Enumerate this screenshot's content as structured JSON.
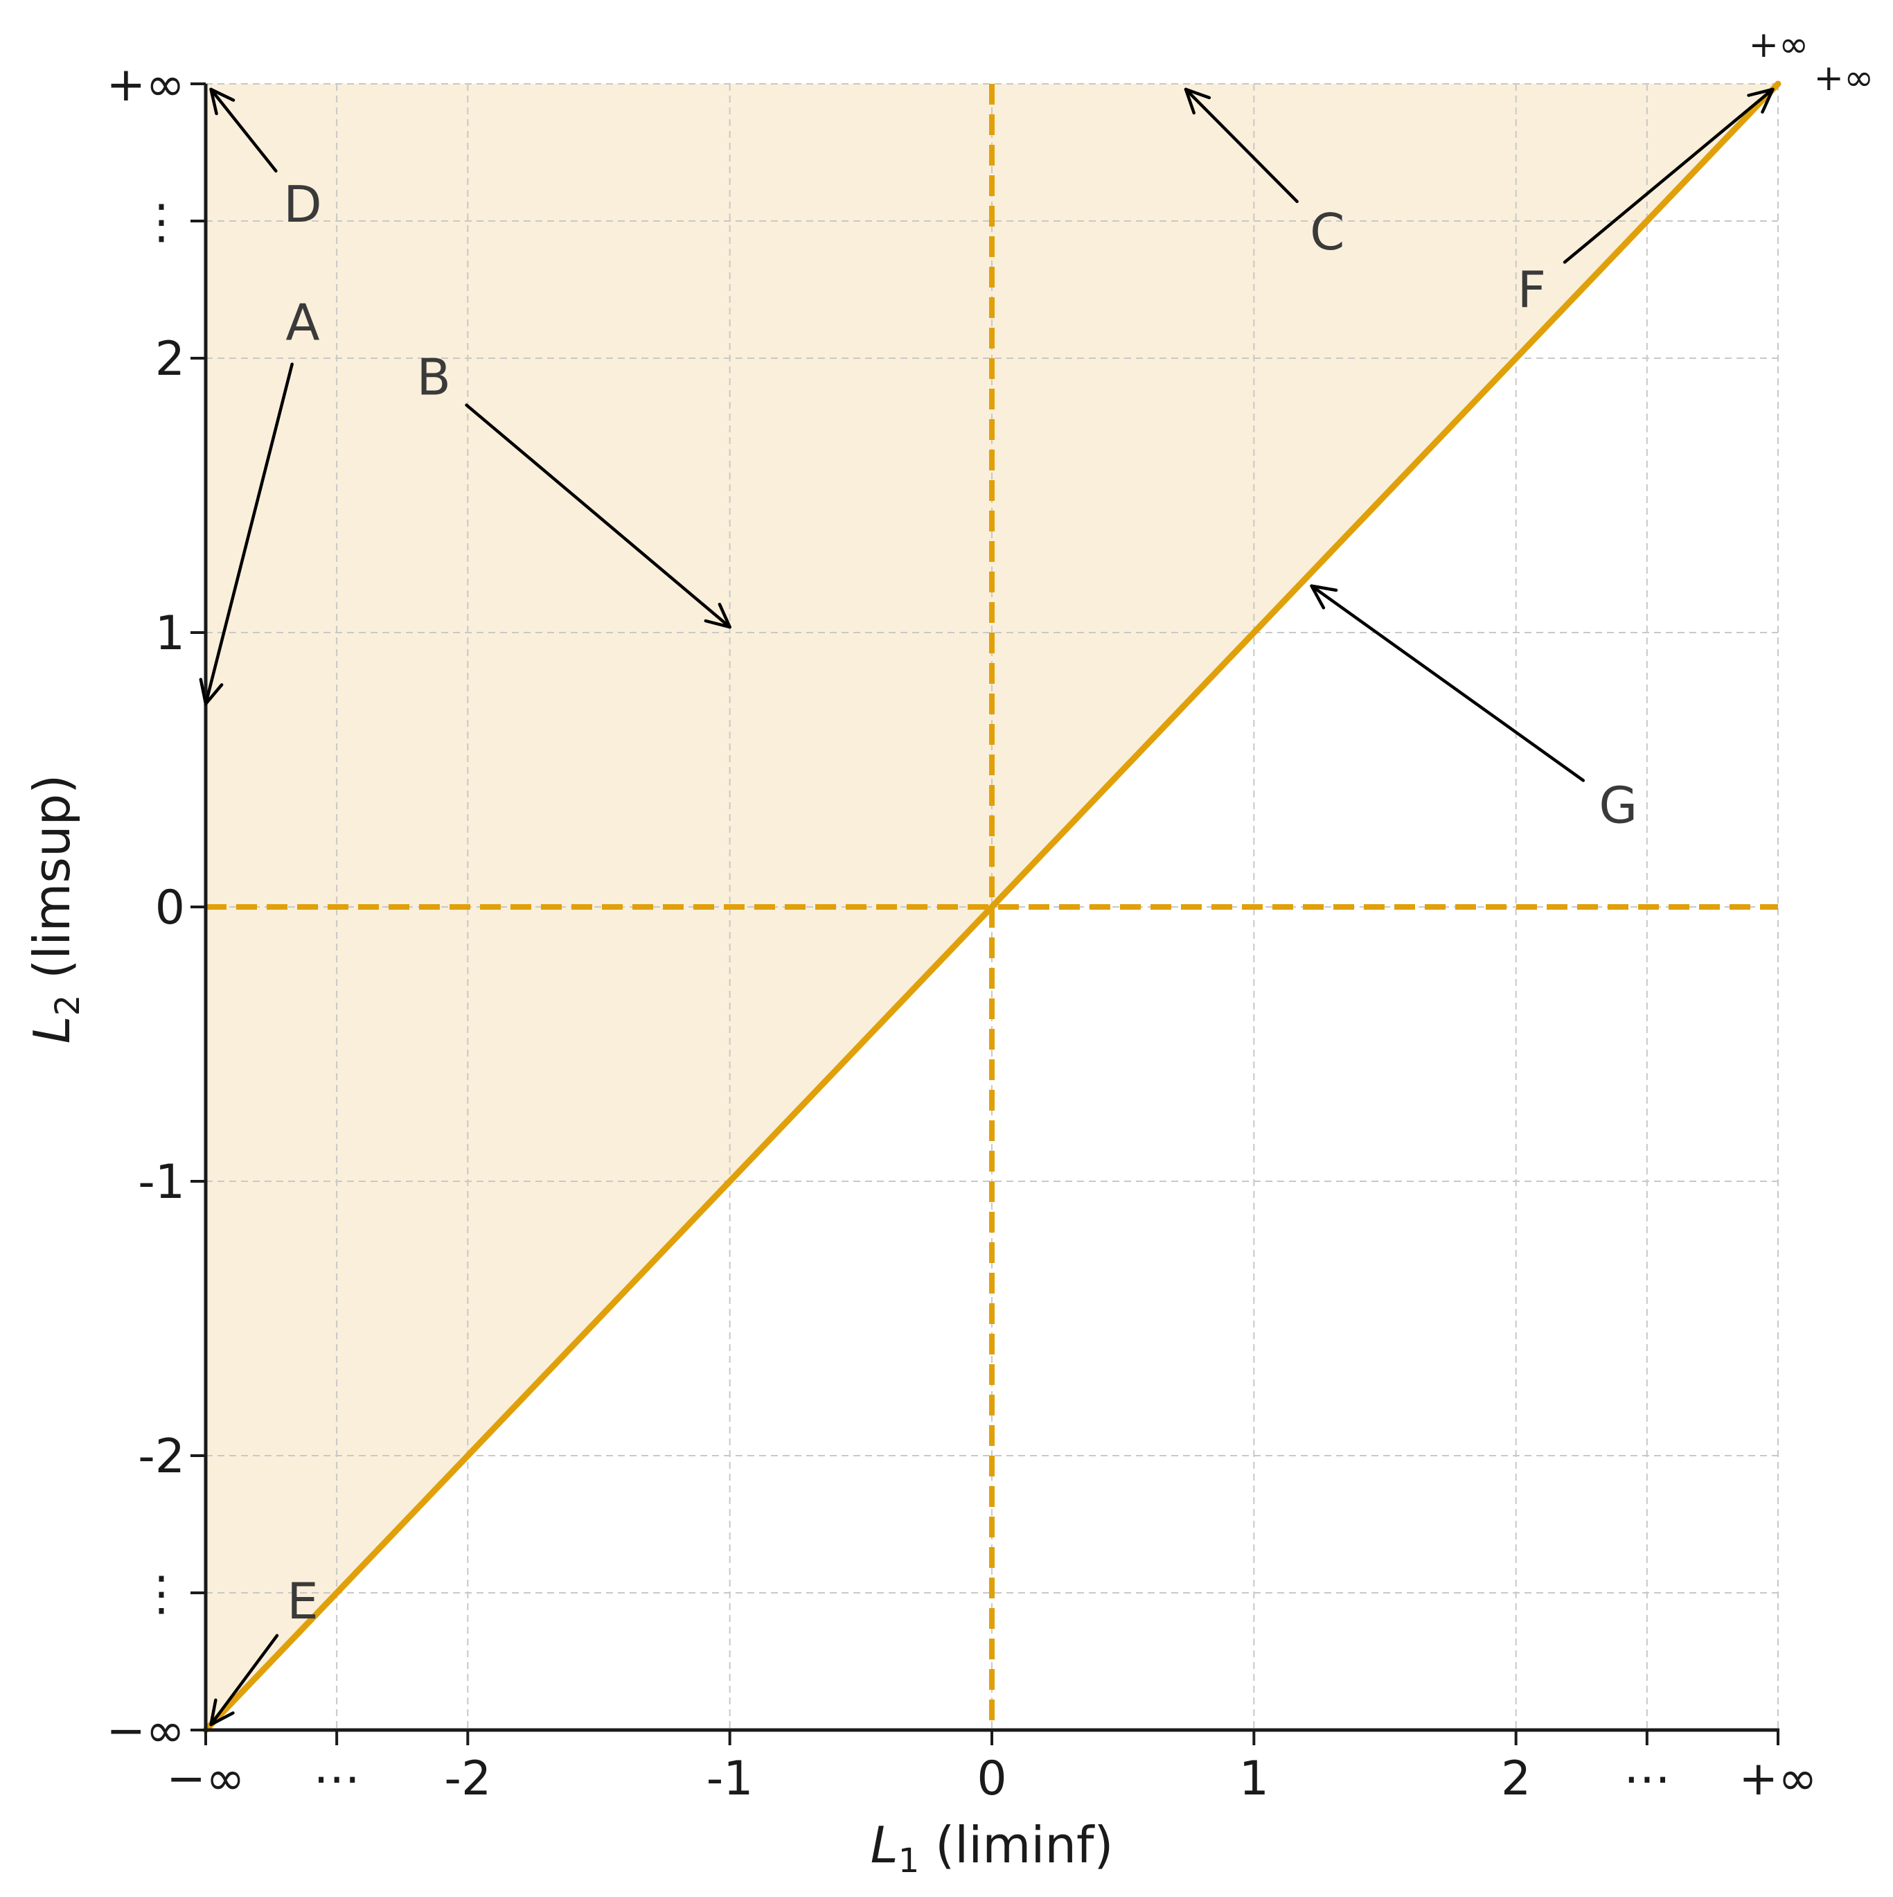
{
  "colors": {
    "region_fill": "#faefda",
    "diagonal": "#e0a00a",
    "zero_lines": "#e0a00a",
    "grid": "#c8c8c8",
    "axis": "#1a1a1a",
    "arrow": "#000000"
  },
  "chart_data": {
    "type": "area",
    "xlabel_sym": "L",
    "xlabel_sub": "1",
    "xlabel_rest": " (liminf)",
    "ylabel_sym": "L",
    "ylabel_sub": "2",
    "ylabel_rest": " (limsup)",
    "x_ticks": [
      {
        "value": -3,
        "label": "−∞"
      },
      {
        "value": -2.5,
        "label": "⋯"
      },
      {
        "value": -2,
        "label": "-2"
      },
      {
        "value": -1,
        "label": "-1"
      },
      {
        "value": 0,
        "label": "0"
      },
      {
        "value": 1,
        "label": "1"
      },
      {
        "value": 2,
        "label": "2"
      },
      {
        "value": 2.5,
        "label": "⋯"
      },
      {
        "value": 3,
        "label": "+∞"
      }
    ],
    "y_ticks": [
      {
        "value": -3,
        "label": "−∞"
      },
      {
        "value": -2.5,
        "label": "⋮"
      },
      {
        "value": -2,
        "label": "-2"
      },
      {
        "value": -1,
        "label": "-1"
      },
      {
        "value": 0,
        "label": "0"
      },
      {
        "value": 1,
        "label": "1"
      },
      {
        "value": 2,
        "label": "2"
      },
      {
        "value": 2.5,
        "label": "⋮"
      },
      {
        "value": 3,
        "label": "+∞"
      }
    ],
    "xlim": [
      -3,
      3
    ],
    "ylim": [
      -3,
      3
    ],
    "grid": true,
    "shaded_region": "L2 >= L1",
    "diagonal_line": {
      "x": [
        -3,
        3
      ],
      "y": [
        -3,
        3
      ]
    },
    "zero_lines": {
      "x": 0,
      "y": 0,
      "style": "dashed"
    },
    "corner_labels": [
      "+∞",
      "+∞"
    ],
    "annotations": [
      {
        "label": "A",
        "text_at": [
          -2.63,
          2.13
        ],
        "arrow_to": [
          -3.0,
          0.74
        ]
      },
      {
        "label": "B",
        "text_at": [
          -2.13,
          1.93
        ],
        "arrow_to": [
          -1.0,
          1.02
        ]
      },
      {
        "label": "C",
        "text_at": [
          1.28,
          2.46
        ],
        "arrow_to": [
          0.74,
          2.98
        ]
      },
      {
        "label": "D",
        "text_at": [
          -2.63,
          2.56
        ],
        "arrow_to": [
          -2.98,
          2.98
        ]
      },
      {
        "label": "E",
        "text_at": [
          -2.63,
          -2.53
        ],
        "arrow_to": [
          -2.98,
          -2.98
        ]
      },
      {
        "label": "F",
        "text_at": [
          2.06,
          2.25
        ],
        "arrow_to": [
          2.98,
          2.98
        ]
      },
      {
        "label": "G",
        "text_at": [
          2.39,
          0.37
        ],
        "arrow_to": [
          1.22,
          1.17
        ]
      }
    ]
  }
}
